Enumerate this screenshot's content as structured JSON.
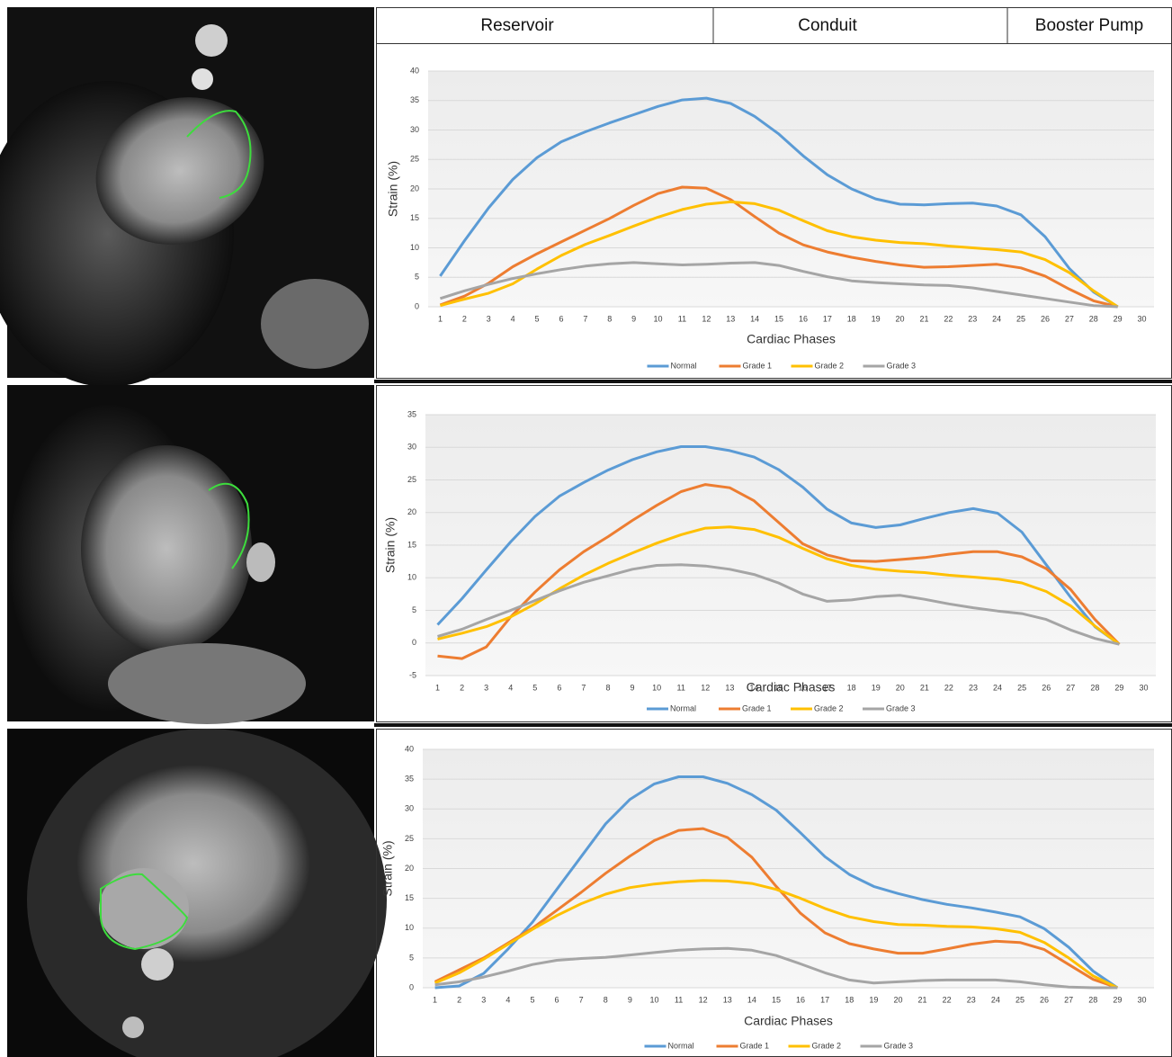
{
  "header": {
    "labels": [
      "Reservoir",
      "Conduit",
      "Booster Pump"
    ]
  },
  "chart_data": [
    {
      "type": "line",
      "y_label": "Strain (%)",
      "x_label": "Cardiac Phases",
      "categories": [
        1,
        2,
        3,
        4,
        5,
        6,
        7,
        8,
        9,
        10,
        11,
        12,
        13,
        14,
        15,
        16,
        17,
        18,
        19,
        20,
        21,
        22,
        23,
        24,
        25,
        26,
        27,
        28,
        29,
        30
      ],
      "ylim": [
        0,
        40
      ],
      "yticks": [
        0,
        5,
        10,
        15,
        20,
        25,
        30,
        35,
        40
      ],
      "grid": true,
      "legend": "bottom",
      "series": [
        {
          "name": "Normal",
          "color": "#5b9bd5",
          "values": [
            5.2,
            11.2,
            16.8,
            21.6,
            25.3,
            28,
            29.7,
            31.2,
            32.6,
            34,
            35.1,
            35.4,
            34.5,
            32.3,
            29.3,
            25.6,
            22.4,
            20,
            18.3,
            17.4,
            17.3,
            17.5,
            17.6,
            17.1,
            15.6,
            11.9,
            6.5,
            2.5,
            0,
            null
          ]
        },
        {
          "name": "Grade 1",
          "color": "#ed7d31",
          "values": [
            0.3,
            1.8,
            4,
            6.8,
            9,
            11,
            13,
            15,
            17.2,
            19.2,
            20.3,
            20.1,
            18.2,
            15.3,
            12.5,
            10.5,
            9.3,
            8.4,
            7.7,
            7.1,
            6.7,
            6.8,
            7,
            7.2,
            6.6,
            5.2,
            3,
            1,
            0,
            null
          ]
        },
        {
          "name": "Grade 2",
          "color": "#ffc000",
          "values": [
            0.2,
            1.3,
            2.3,
            3.9,
            6.4,
            8.7,
            10.6,
            12.1,
            13.7,
            15.2,
            16.5,
            17.4,
            17.8,
            17.5,
            16.4,
            14.6,
            12.9,
            11.9,
            11.3,
            10.9,
            10.7,
            10.3,
            10,
            9.7,
            9.3,
            8,
            5.8,
            2.7,
            0,
            null
          ]
        },
        {
          "name": "Grade 3",
          "color": "#a5a5a5",
          "values": [
            1.4,
            2.7,
            3.8,
            4.8,
            5.6,
            6.3,
            6.9,
            7.3,
            7.5,
            7.3,
            7.1,
            7.2,
            7.4,
            7.5,
            7,
            6,
            5.1,
            4.4,
            4.1,
            3.9,
            3.7,
            3.6,
            3.2,
            2.6,
            2,
            1.4,
            0.8,
            0.2,
            0,
            null
          ]
        }
      ]
    },
    {
      "type": "line",
      "y_label": "Strain (%)",
      "x_label": "Cardiac Phases",
      "categories": [
        1,
        2,
        3,
        4,
        5,
        6,
        7,
        8,
        9,
        10,
        11,
        12,
        13,
        14,
        15,
        16,
        17,
        18,
        19,
        20,
        21,
        22,
        23,
        24,
        25,
        26,
        27,
        28,
        29,
        30
      ],
      "ylim": [
        -5,
        35
      ],
      "yticks": [
        -5,
        0,
        5,
        10,
        15,
        20,
        25,
        30,
        35
      ],
      "grid": true,
      "legend": "bottom",
      "series": [
        {
          "name": "Normal",
          "color": "#5b9bd5",
          "values": [
            2.8,
            6.8,
            11.2,
            15.5,
            19.4,
            22.5,
            24.6,
            26.5,
            28.1,
            29.3,
            30.1,
            30.1,
            29.5,
            28.5,
            26.6,
            23.9,
            20.5,
            18.4,
            17.7,
            18.1,
            19.1,
            20,
            20.6,
            19.9,
            17,
            12,
            7,
            2.5,
            -0.2,
            null
          ]
        },
        {
          "name": "Grade 1",
          "color": "#ed7d31",
          "values": [
            -2,
            -2.4,
            -0.6,
            4,
            7.8,
            11.2,
            14,
            16.3,
            18.8,
            21.1,
            23.2,
            24.3,
            23.8,
            21.8,
            18.5,
            15.2,
            13.5,
            12.6,
            12.5,
            12.8,
            13.1,
            13.6,
            14,
            14,
            13.2,
            11.4,
            8.2,
            3.6,
            -0.2,
            null
          ]
        },
        {
          "name": "Grade 2",
          "color": "#ffc000",
          "values": [
            0.6,
            1.5,
            2.5,
            4,
            6,
            8.3,
            10.4,
            12.2,
            13.8,
            15.3,
            16.6,
            17.6,
            17.8,
            17.4,
            16.2,
            14.5,
            12.9,
            11.9,
            11.3,
            11,
            10.8,
            10.4,
            10.1,
            9.8,
            9.2,
            7.9,
            5.7,
            2.6,
            -0.2,
            null
          ]
        },
        {
          "name": "Grade 3",
          "color": "#a5a5a5",
          "values": [
            1,
            2.1,
            3.6,
            5,
            6.5,
            8,
            9.3,
            10.3,
            11.3,
            11.9,
            12,
            11.8,
            11.3,
            10.5,
            9.2,
            7.5,
            6.4,
            6.6,
            7.1,
            7.3,
            6.7,
            6,
            5.4,
            4.9,
            4.5,
            3.6,
            2,
            0.7,
            -0.2,
            null
          ]
        }
      ]
    },
    {
      "type": "line",
      "y_label": "Strain (%)",
      "x_label": "Cardiac Phases",
      "categories": [
        1,
        2,
        3,
        4,
        5,
        6,
        7,
        8,
        9,
        10,
        11,
        12,
        13,
        14,
        15,
        16,
        17,
        18,
        19,
        20,
        21,
        22,
        23,
        24,
        25,
        26,
        27,
        28,
        29,
        30
      ],
      "ylim": [
        0,
        40
      ],
      "yticks": [
        0,
        5,
        10,
        15,
        20,
        25,
        30,
        35,
        40
      ],
      "grid": true,
      "legend": "bottom",
      "series": [
        {
          "name": "Normal",
          "color": "#5b9bd5",
          "values": [
            0,
            0.3,
            2.4,
            6.5,
            11,
            16.5,
            22,
            27.5,
            31.6,
            34.2,
            35.4,
            35.4,
            34.3,
            32.4,
            29.8,
            26,
            22,
            19,
            17,
            15.8,
            14.8,
            14,
            13.4,
            12.7,
            11.9,
            9.9,
            6.8,
            2.8,
            0,
            null
          ]
        },
        {
          "name": "Grade 1",
          "color": "#ed7d31",
          "values": [
            1,
            3,
            5,
            7.5,
            10,
            13,
            16,
            19.2,
            22.1,
            24.7,
            26.4,
            26.7,
            25.2,
            21.9,
            17,
            12.5,
            9.2,
            7.4,
            6.5,
            5.8,
            5.8,
            6.5,
            7.3,
            7.8,
            7.6,
            6.4,
            3.9,
            1.4,
            0,
            null
          ]
        },
        {
          "name": "Grade 2",
          "color": "#ffc000",
          "values": [
            0.8,
            2.5,
            4.8,
            7.3,
            9.8,
            12.1,
            14.1,
            15.7,
            16.8,
            17.4,
            17.8,
            18,
            17.9,
            17.5,
            16.5,
            15,
            13.3,
            11.9,
            11.1,
            10.6,
            10.5,
            10.3,
            10.2,
            9.9,
            9.3,
            7.6,
            5,
            2,
            0,
            null
          ]
        },
        {
          "name": "Grade 3",
          "color": "#a5a5a5",
          "values": [
            0.5,
            1,
            1.8,
            2.8,
            3.9,
            4.6,
            4.9,
            5.1,
            5.5,
            5.9,
            6.3,
            6.5,
            6.6,
            6.3,
            5.4,
            4,
            2.5,
            1.3,
            0.8,
            1,
            1.2,
            1.3,
            1.3,
            1.3,
            1,
            0.5,
            0.1,
            0,
            0,
            null
          ]
        }
      ]
    }
  ]
}
